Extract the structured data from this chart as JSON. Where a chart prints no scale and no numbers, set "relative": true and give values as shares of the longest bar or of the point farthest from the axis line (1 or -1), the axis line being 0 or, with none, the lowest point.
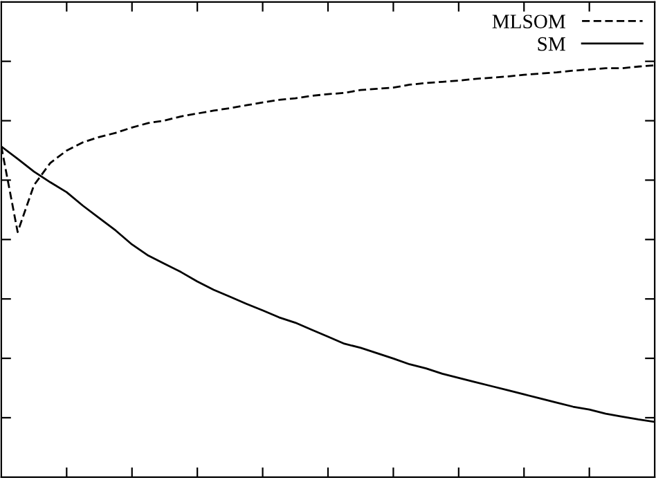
{
  "chart_data": {
    "type": "line",
    "relative": true,
    "legend": "top right",
    "grid": false,
    "categories": [
      null,
      null,
      null,
      null,
      null,
      null,
      null,
      null,
      null,
      null,
      null,
      null,
      null,
      null,
      null,
      null,
      null,
      null,
      null,
      null,
      null,
      null,
      null,
      null,
      null,
      null,
      null,
      null,
      null,
      null,
      null,
      null,
      null,
      null,
      null,
      null,
      null,
      null,
      null,
      null,
      null
    ],
    "series": [
      {
        "name": "MLSOM",
        "color": "#000000",
        "line_style": "dashed",
        "values": [
          0.803,
          0.595,
          0.709,
          0.763,
          0.793,
          0.813,
          0.826,
          0.836,
          0.849,
          0.86,
          0.866,
          0.876,
          0.883,
          0.89,
          0.896,
          0.903,
          0.91,
          0.916,
          0.92,
          0.926,
          0.93,
          0.933,
          0.94,
          0.943,
          0.946,
          0.953,
          0.957,
          0.96,
          0.963,
          0.967,
          0.97,
          0.973,
          0.977,
          0.98,
          0.983,
          0.987,
          0.99,
          0.993,
          0.993,
          0.997,
          1.0
        ]
      },
      {
        "name": "SM",
        "color": "#000000",
        "line_style": "solid",
        "values": [
          0.803,
          0.773,
          0.742,
          0.716,
          0.692,
          0.659,
          0.629,
          0.599,
          0.565,
          0.538,
          0.518,
          0.498,
          0.475,
          0.455,
          0.438,
          0.421,
          0.405,
          0.388,
          0.375,
          0.358,
          0.341,
          0.324,
          0.314,
          0.301,
          0.288,
          0.274,
          0.264,
          0.251,
          0.241,
          0.231,
          0.221,
          0.211,
          0.201,
          0.191,
          0.181,
          0.171,
          0.164,
          0.154,
          0.147,
          0.14,
          0.134
        ]
      }
    ]
  }
}
